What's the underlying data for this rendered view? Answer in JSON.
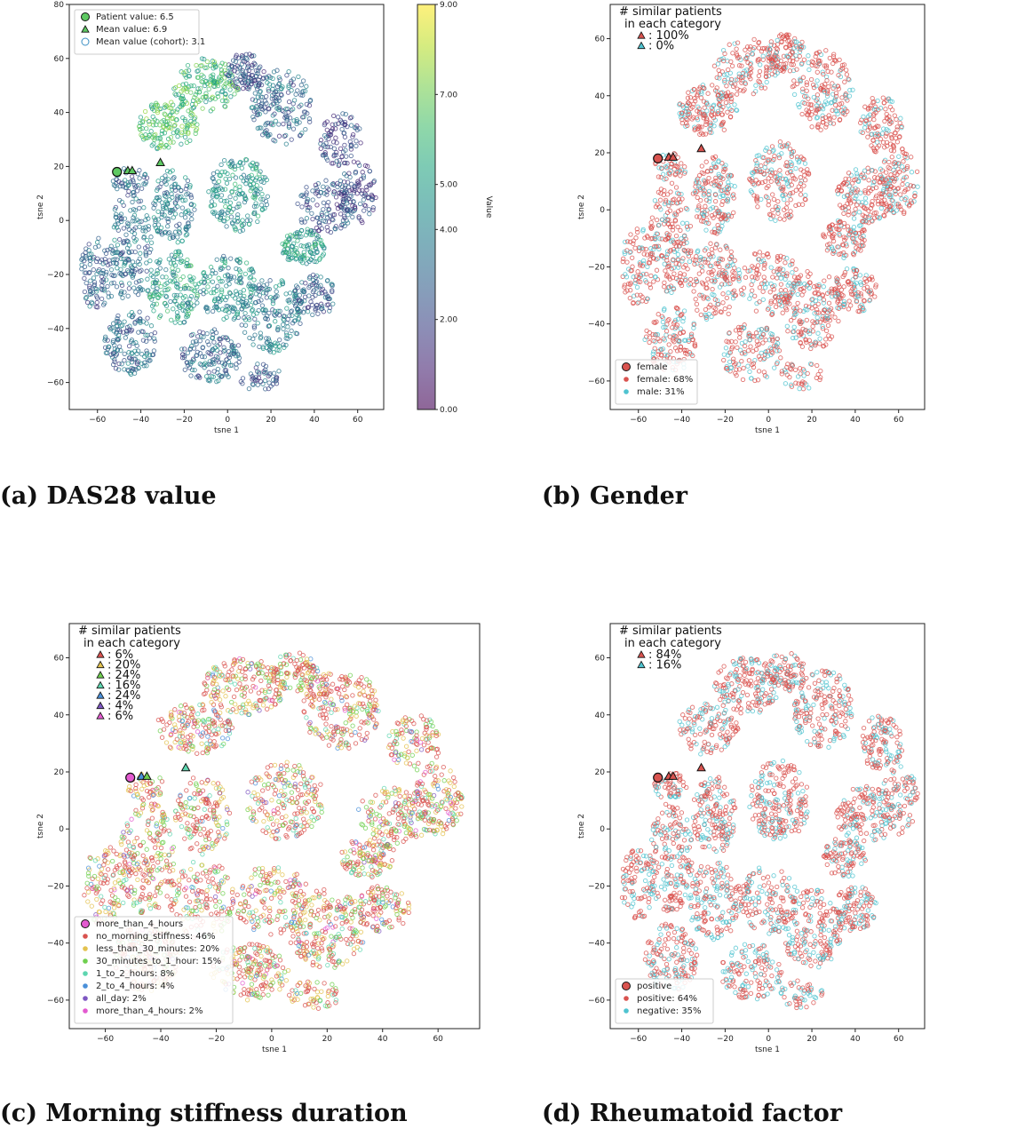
{
  "captions": {
    "a": "(a) DAS28 value",
    "b": "(b) Gender",
    "c": "(c) Morning stiffness duration",
    "d": "(d) Rheumatoid factor"
  },
  "chart_data": [
    {
      "id": "a",
      "type": "scatter",
      "xlabel": "tsne 1",
      "ylabel": "tsne 2",
      "xlim": [
        -73,
        72
      ],
      "ylim": [
        -70,
        80
      ],
      "xticks": [
        -60,
        -40,
        -20,
        0,
        20,
        40,
        60
      ],
      "yticks": [
        -60,
        -40,
        -20,
        0,
        20,
        40,
        60,
        80
      ],
      "grid": false,
      "legend_position": "top-left",
      "legend": [
        {
          "marker": "circle-filled",
          "color": "#5ec962",
          "label": "Patient value: 6.5"
        },
        {
          "marker": "triangle",
          "color": "#5ec962",
          "label": "Mean value: 6.9"
        },
        {
          "marker": "circle-open",
          "color": "#3b8fc4",
          "label": "Mean value (cohort): 3.1"
        }
      ],
      "colorbar": {
        "label": "Value",
        "range": [
          0,
          9
        ],
        "ticks": [
          "0.00",
          "2.00",
          "4.00",
          "5.00",
          "7.00",
          "9.00"
        ],
        "tick_values": [
          0,
          2,
          4,
          5,
          7,
          9
        ],
        "colormap": "viridis"
      },
      "highlights": [
        {
          "shape": "circle",
          "x": -51,
          "y": 18,
          "color": "#5ec962"
        },
        {
          "shape": "triangle",
          "x": -46,
          "y": 18.5,
          "color": "#5ec962"
        },
        {
          "shape": "triangle",
          "x": -44,
          "y": 18.5,
          "color": "#5ec962"
        },
        {
          "shape": "triangle",
          "x": -31,
          "y": 21.5,
          "color": "#5ec962"
        }
      ],
      "color_values": {
        "low": 2.5,
        "high": 7.5
      }
    },
    {
      "id": "b",
      "type": "scatter",
      "xlabel": "tsne 1",
      "ylabel": "tsne 2",
      "xlim": [
        -73,
        72
      ],
      "ylim": [
        -70,
        72
      ],
      "xticks": [
        -60,
        -40,
        -20,
        0,
        20,
        40,
        60
      ],
      "yticks": [
        -60,
        -40,
        -20,
        0,
        20,
        40,
        60
      ],
      "grid": false,
      "legend_position": "bottom-left",
      "count_box": {
        "title": [
          "# similar patients",
          "in each category"
        ],
        "items": [
          {
            "color": "#d9534f",
            "label": ": 100%"
          },
          {
            "color": "#4fc3d0",
            "label": ": 0%"
          }
        ]
      },
      "legend": [
        {
          "marker": "circle-big",
          "color": "#d9534f",
          "label": "female"
        },
        {
          "marker": "dot",
          "color": "#d9534f",
          "label": "female: 68%"
        },
        {
          "marker": "dot",
          "color": "#4fc3d0",
          "label": "male: 31%"
        }
      ],
      "categories": [
        {
          "name": "female",
          "share": 68,
          "color": "#d9534f"
        },
        {
          "name": "male",
          "share": 31,
          "color": "#4fc3d0"
        }
      ],
      "highlights": [
        {
          "shape": "circle",
          "x": -51,
          "y": 18,
          "color": "#d9534f"
        },
        {
          "shape": "triangle",
          "x": -46,
          "y": 18.5,
          "color": "#d9534f"
        },
        {
          "shape": "triangle",
          "x": -44,
          "y": 18.5,
          "color": "#d9534f"
        },
        {
          "shape": "triangle",
          "x": -31,
          "y": 21.5,
          "color": "#d9534f"
        }
      ]
    },
    {
      "id": "c",
      "type": "scatter",
      "xlabel": "tsne 1",
      "ylabel": "tsne 2",
      "xlim": [
        -73,
        75
      ],
      "ylim": [
        -70,
        72
      ],
      "xticks": [
        -60,
        -40,
        -20,
        0,
        20,
        40,
        60
      ],
      "yticks": [
        -60,
        -40,
        -20,
        0,
        20,
        40,
        60
      ],
      "grid": false,
      "legend_position": "bottom-left",
      "count_box": {
        "title": [
          "# similar patients",
          "in each category"
        ],
        "items": [
          {
            "color": "#d9534f",
            "label": ": 6%"
          },
          {
            "color": "#e3c24f",
            "label": ": 20%"
          },
          {
            "color": "#6fcf4f",
            "label": ": 24%"
          },
          {
            "color": "#5ed6b0",
            "label": ": 16%"
          },
          {
            "color": "#4a90d9",
            "label": ": 24%"
          },
          {
            "color": "#7e57c2",
            "label": ": 4%"
          },
          {
            "color": "#e35ad0",
            "label": ": 6%"
          }
        ]
      },
      "legend": [
        {
          "marker": "circle-big",
          "color": "#e35ad0",
          "label": "more_than_4_hours"
        },
        {
          "marker": "dot",
          "color": "#d9534f",
          "label": "no_morning_stiffness: 46%"
        },
        {
          "marker": "dot",
          "color": "#e3c24f",
          "label": "less_than_30_minutes: 20%"
        },
        {
          "marker": "dot",
          "color": "#6fcf4f",
          "label": "30_minutes_to_1_hour: 15%"
        },
        {
          "marker": "dot",
          "color": "#5ed6b0",
          "label": "1_to_2_hours: 8%"
        },
        {
          "marker": "dot",
          "color": "#4a90d9",
          "label": "2_to_4_hours: 4%"
        },
        {
          "marker": "dot",
          "color": "#7e57c2",
          "label": "all_day: 2%"
        },
        {
          "marker": "dot",
          "color": "#e35ad0",
          "label": "more_than_4_hours: 2%"
        }
      ],
      "categories": [
        {
          "name": "no_morning_stiffness",
          "share": 46,
          "color": "#d9534f"
        },
        {
          "name": "less_than_30_minutes",
          "share": 20,
          "color": "#e3c24f"
        },
        {
          "name": "30_minutes_to_1_hour",
          "share": 15,
          "color": "#6fcf4f"
        },
        {
          "name": "1_to_2_hours",
          "share": 8,
          "color": "#5ed6b0"
        },
        {
          "name": "2_to_4_hours",
          "share": 4,
          "color": "#4a90d9"
        },
        {
          "name": "all_day",
          "share": 2,
          "color": "#7e57c2"
        },
        {
          "name": "more_than_4_hours",
          "share": 2,
          "color": "#e35ad0"
        }
      ],
      "highlights": [
        {
          "shape": "circle",
          "x": -51,
          "y": 18,
          "color": "#e35ad0"
        },
        {
          "shape": "triangle",
          "x": -47,
          "y": 18.5,
          "color": "#4a90d9"
        },
        {
          "shape": "triangle",
          "x": -45,
          "y": 18.5,
          "color": "#6fcf4f"
        },
        {
          "shape": "triangle",
          "x": -31,
          "y": 21.5,
          "color": "#5ed6b0"
        }
      ]
    },
    {
      "id": "d",
      "type": "scatter",
      "xlabel": "tsne 1",
      "ylabel": "tsne 2",
      "xlim": [
        -73,
        72
      ],
      "ylim": [
        -70,
        72
      ],
      "xticks": [
        -60,
        -40,
        -20,
        0,
        20,
        40,
        60
      ],
      "yticks": [
        -60,
        -40,
        -20,
        0,
        20,
        40,
        60
      ],
      "grid": false,
      "legend_position": "bottom-left",
      "count_box": {
        "title": [
          "# similar patients",
          "in each category"
        ],
        "items": [
          {
            "color": "#d9534f",
            "label": ": 84%"
          },
          {
            "color": "#4fc3d0",
            "label": ": 16%"
          }
        ]
      },
      "legend": [
        {
          "marker": "circle-big",
          "color": "#d9534f",
          "label": "positive"
        },
        {
          "marker": "dot",
          "color": "#d9534f",
          "label": "positive: 64%"
        },
        {
          "marker": "dot",
          "color": "#4fc3d0",
          "label": "negative: 35%"
        }
      ],
      "categories": [
        {
          "name": "positive",
          "share": 64,
          "color": "#d9534f"
        },
        {
          "name": "negative",
          "share": 35,
          "color": "#4fc3d0"
        }
      ],
      "highlights": [
        {
          "shape": "circle",
          "x": -51,
          "y": 18,
          "color": "#d9534f"
        },
        {
          "shape": "triangle",
          "x": -46,
          "y": 18.5,
          "color": "#d9534f"
        },
        {
          "shape": "triangle",
          "x": -44,
          "y": 18.5,
          "color": "#d9534f"
        },
        {
          "shape": "triangle",
          "x": -31,
          "y": 21.5,
          "color": "#d9534f"
        }
      ]
    }
  ]
}
